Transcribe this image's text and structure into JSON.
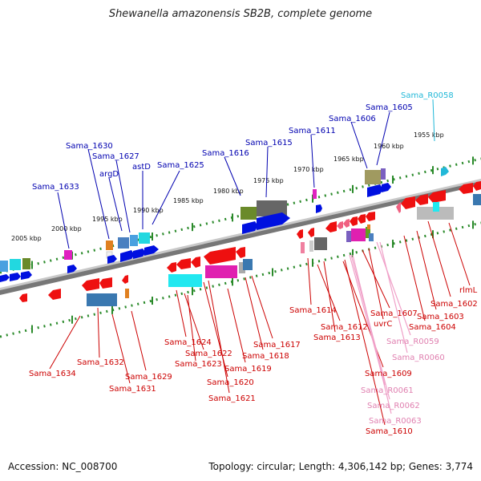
{
  "title": "Shewanella amazonensis SB2B, complete genome",
  "accession": "Accession: NC_008700",
  "topology": "Topology: circular; Length: 4,306,142 bp; Genes: 3,774",
  "colors": {
    "forward_label": "#0000b0",
    "reverse_label": "#cc0000",
    "rna_label_pink": "#e080b0",
    "rna_label_cyan": "#22b8d8",
    "backbone": "#808080",
    "tick": "#228822"
  },
  "scale_ticks": [
    "2005 kbp",
    "2000 kbp",
    "1995 kbp",
    "1990 kbp",
    "1985 kbp",
    "1980 kbp",
    "1975 kbp",
    "1970 kbp",
    "1965 kbp",
    "1960 kbp",
    "1955 kbp"
  ],
  "labels_top": [
    "Sama_1633",
    "Sama_1630",
    "Sama_1627",
    "argD",
    "astD",
    "Sama_1625",
    "Sama_1616",
    "Sama_1615",
    "Sama_1611",
    "Sama_1606",
    "Sama_1605",
    "Sama_R0058"
  ],
  "labels_bottom": [
    "Sama_1634",
    "Sama_1632",
    "Sama_1631",
    "Sama_1629",
    "Sama_1624",
    "Sama_1622",
    "Sama_1623",
    "Sama_1620",
    "Sama_1621",
    "Sama_1619",
    "Sama_1618",
    "Sama_1617",
    "Sama_1614",
    "Sama_1612",
    "Sama_1613",
    "Sama_1607",
    "uvrC",
    "Sama_R0059",
    "Sama_R0060",
    "Sama_1609",
    "Sama_R0061",
    "Sama_R0062",
    "Sama_R0063",
    "Sama_1610",
    "Sama_1604",
    "Sama_1603",
    "Sama_1602",
    "rlmL"
  ]
}
